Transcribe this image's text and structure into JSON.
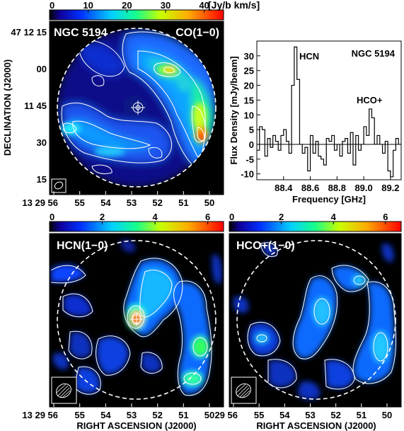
{
  "chart_data": [
    {
      "type": "heatmap",
      "object": "NGC 5194",
      "line": "CO(1−0)",
      "colorbar": {
        "ticks": [
          "0",
          "10",
          "20",
          "30",
          "40"
        ],
        "unit": "[Jy/b km/s]",
        "range": [
          0,
          45
        ]
      },
      "yticks": [
        "47 12 15",
        "00",
        "11 45",
        "30",
        "15"
      ],
      "xticks": [
        "13 29 56",
        "55",
        "54",
        "53",
        "52",
        "51",
        "50"
      ],
      "ylabel": "DECLINATION (J2000)"
    },
    {
      "type": "line",
      "title": "NGC 5194",
      "xlabel": "Frequency [GHz]",
      "ylabel": "Flux Density [mJy/beam]",
      "xlim": [
        88.2,
        89.28
      ],
      "ylim": [
        -12,
        35
      ],
      "xticks": [
        "88.4",
        "88.6",
        "88.8",
        "89.0",
        "89.2"
      ],
      "yticks": [
        "30",
        "25",
        "20",
        "15",
        "10",
        "5",
        "0",
        "-5",
        "-10"
      ],
      "annotations": [
        "HCN",
        "HCO+"
      ],
      "x": [
        88.2,
        88.22,
        88.24,
        88.26,
        88.28,
        88.3,
        88.32,
        88.34,
        88.36,
        88.38,
        88.4,
        88.42,
        88.44,
        88.46,
        88.48,
        88.5,
        88.52,
        88.54,
        88.56,
        88.58,
        88.6,
        88.62,
        88.64,
        88.66,
        88.68,
        88.7,
        88.72,
        88.74,
        88.76,
        88.78,
        88.8,
        88.82,
        88.84,
        88.86,
        88.88,
        88.9,
        88.92,
        88.94,
        88.96,
        88.98,
        89.0,
        89.02,
        89.04,
        89.06,
        89.08,
        89.1,
        89.12,
        89.14,
        89.16,
        89.18,
        89.2,
        89.22,
        89.24,
        89.26
      ],
      "y": [
        -2,
        6,
        5,
        -4,
        2,
        -1,
        3,
        1,
        -2,
        3,
        5,
        1,
        -3,
        20,
        33,
        22,
        0,
        -3,
        -1,
        -9,
        3,
        -3,
        1,
        -4,
        -5,
        -7,
        2,
        1,
        3,
        -2,
        0,
        -4,
        1,
        2,
        -3,
        4,
        -7,
        3,
        -2,
        0,
        6,
        3,
        12,
        9,
        0,
        3,
        0,
        -3,
        1,
        -9,
        -11,
        -2,
        2,
        0
      ]
    },
    {
      "type": "heatmap",
      "line": "HCN(1−0)",
      "colorbar": {
        "ticks": [
          "0",
          "2",
          "4",
          "6"
        ],
        "range": [
          0,
          6.6
        ]
      },
      "yticks": [
        "47 12 15",
        "00",
        "11 45",
        "30",
        "15"
      ],
      "xticks": [
        "13 29 56",
        "55",
        "54",
        "53",
        "52",
        "51",
        "50"
      ],
      "xlabel": "RIGHT ASCENSION (J2000)"
    },
    {
      "type": "heatmap",
      "line": "HCO+(1−0)",
      "colorbar": {
        "ticks": [
          "0",
          "2",
          "4",
          "6"
        ],
        "range": [
          0,
          6.6
        ]
      },
      "xticks": [
        "29 56",
        "55",
        "54",
        "53",
        "52",
        "51",
        "50"
      ],
      "xlabel": "RIGHT ASCENSION (J2000)"
    }
  ]
}
